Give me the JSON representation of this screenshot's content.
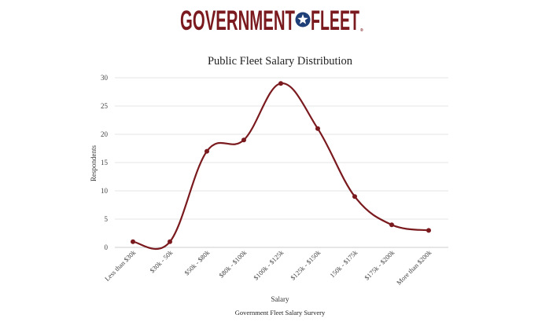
{
  "logo": {
    "word1": "GOVERNMENT",
    "word2": "FLEET",
    "mark": "®",
    "brand_color": "#7a1a1e",
    "star_color": "#1f3f78",
    "icon": "star-in-circle-icon"
  },
  "chart_data": {
    "type": "line",
    "title": "Public Fleet Salary Distribution",
    "xlabel": "Salary",
    "ylabel": "Respondents",
    "caption": "Government Fleet Salary Survery",
    "categories": [
      "Less than $30k",
      "$30k - 50k",
      "$50k - $80k",
      "$80k - $100k",
      "$100k - $125k",
      "$125k - $150k",
      "150k - $175k",
      "$175k - $200k",
      "More than $200k"
    ],
    "series": [
      {
        "values": [
          1,
          1,
          17,
          19,
          29,
          21,
          9,
          4,
          3
        ],
        "color": "#7a1a1e"
      }
    ],
    "ylim": [
      0,
      30
    ],
    "yticks": [
      "0",
      "5",
      "10",
      "15",
      "20",
      "25",
      "30"
    ],
    "grid": true,
    "smooth": true
  }
}
